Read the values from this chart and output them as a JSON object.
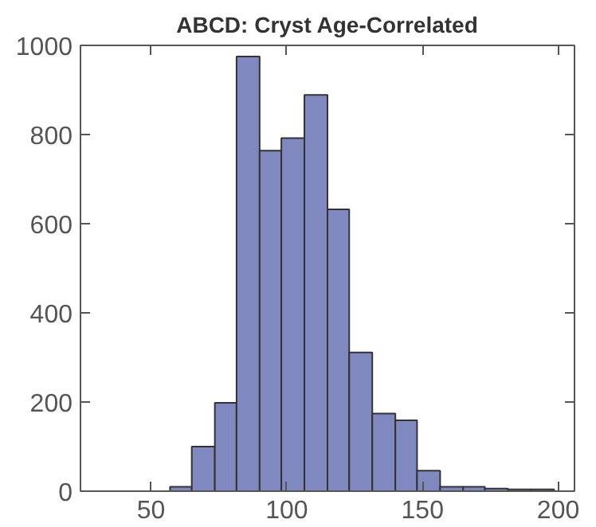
{
  "chart_data": {
    "type": "histogram",
    "title": "ABCD: Cryst Age-Correlated",
    "bins": [
      57,
      65,
      73.5,
      81.5,
      90,
      98,
      106.5,
      115,
      123,
      131.5,
      140,
      148,
      156.5,
      165,
      173,
      181.5,
      190,
      198.5
    ],
    "values": [
      10,
      100,
      198,
      975,
      764,
      792,
      889,
      632,
      311,
      174,
      159,
      46,
      10,
      10,
      6,
      4,
      4
    ],
    "color": "#8088c0",
    "xlim": [
      24,
      206
    ],
    "xticks": [
      50,
      100,
      150,
      200
    ],
    "ylim": [
      0,
      1000
    ],
    "yticks": [
      0,
      200,
      400,
      600,
      800,
      1000
    ],
    "grid": false
  }
}
